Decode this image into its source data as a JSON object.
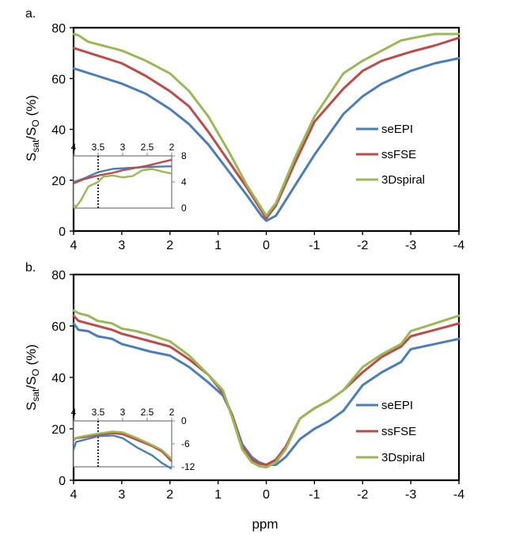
{
  "colors": {
    "seEPI": "#4a7ebb",
    "ssFSE": "#be4b48",
    "3Dspiral": "#98b954"
  },
  "figure": {
    "xlabel": "ppm"
  },
  "chart_data": [
    {
      "panel_label": "a.",
      "type": "line",
      "ylabel_main": "S",
      "ylabel_sub1": "sat",
      "ylabel_mid": "/S",
      "ylabel_sub2": "O",
      "ylabel_tail": " (%)",
      "xlim": [
        4,
        -4
      ],
      "ylim": [
        0,
        80
      ],
      "xticks": [
        4,
        3,
        2,
        1,
        0,
        -1,
        -2,
        -3,
        -4
      ],
      "yticks": [
        0,
        20,
        40,
        60,
        80
      ],
      "legend_position": "right-middle",
      "series": [
        {
          "name": "seEPI",
          "color": "#4a7ebb",
          "x": [
            4,
            3.5,
            3,
            2.5,
            2,
            1.6,
            1.2,
            0.8,
            0.4,
            0.1,
            0,
            -0.2,
            -0.6,
            -1,
            -1.6,
            -2,
            -2.4,
            -3,
            -3.5,
            -4
          ],
          "y": [
            64,
            61,
            58,
            54,
            48,
            42,
            34,
            24,
            14,
            6,
            4,
            6,
            18,
            30,
            46,
            53,
            58,
            63,
            66,
            68
          ]
        },
        {
          "name": "ssFSE",
          "color": "#be4b48",
          "x": [
            4,
            3.5,
            3,
            2.5,
            2,
            1.6,
            1.2,
            0.8,
            0.4,
            0.1,
            0,
            -0.2,
            -0.6,
            -1,
            -1.6,
            -2,
            -2.4,
            -3,
            -3.5,
            -4
          ],
          "y": [
            72,
            69,
            66,
            61,
            55,
            49,
            39,
            28,
            17,
            8,
            5,
            10,
            27,
            43,
            56,
            63,
            67,
            70.5,
            73,
            76
          ]
        },
        {
          "name": "3Dspiral",
          "color": "#98b954",
          "x": [
            4,
            3.9,
            3.7,
            3.5,
            3.2,
            3,
            2.5,
            2,
            1.6,
            1.2,
            0.8,
            0.4,
            0.1,
            0,
            -0.2,
            -0.6,
            -1,
            -1.6,
            -2,
            -2.4,
            -2.8,
            -3.2,
            -3.5,
            -4
          ],
          "y": [
            77.5,
            77,
            74.5,
            73.5,
            72,
            71,
            67,
            62,
            55,
            45,
            32,
            18,
            9,
            6,
            11,
            29,
            45,
            62,
            67,
            71,
            75,
            76.5,
            77.5,
            77.5
          ]
        }
      ],
      "inset": {
        "xlim": [
          4,
          2
        ],
        "ylim": [
          0,
          8
        ],
        "xticks": [
          4,
          3.5,
          3,
          2.5,
          2
        ],
        "yticks": [
          0,
          4,
          8
        ],
        "marker_x": 3.5,
        "series": [
          {
            "name": "seEPI",
            "x": [
              4,
              3.8,
              3.5,
              3.2,
              3,
              2.5,
              2
            ],
            "y": [
              4,
              4.5,
              5.5,
              6,
              6.1,
              6.3,
              6.4
            ]
          },
          {
            "name": "ssFSE",
            "x": [
              4,
              3.8,
              3.5,
              3.2,
              3,
              2.5,
              2
            ],
            "y": [
              3.8,
              4.4,
              5,
              5.4,
              5.8,
              6.5,
              7.4
            ]
          },
          {
            "name": "3Dspiral",
            "x": [
              4,
              3.95,
              3.85,
              3.7,
              3.5,
              3.4,
              3.2,
              3.0,
              2.8,
              2.6,
              2.4,
              2.2,
              2
            ],
            "y": [
              0.5,
              0.2,
              1.2,
              3.3,
              4,
              4.8,
              5,
              4.7,
              4.9,
              5.8,
              6,
              5.6,
              5.3
            ]
          }
        ]
      }
    },
    {
      "panel_label": "b.",
      "type": "line",
      "ylabel_main": "S",
      "ylabel_sub1": "sat",
      "ylabel_mid": "/S",
      "ylabel_sub2": "O",
      "ylabel_tail": " (%)",
      "xlim": [
        4,
        -4
      ],
      "ylim": [
        0,
        80
      ],
      "xticks": [
        4,
        3,
        2,
        1,
        0,
        -1,
        -2,
        -3,
        -4
      ],
      "yticks": [
        0,
        20,
        40,
        60,
        80
      ],
      "legend_position": "bottom-right",
      "series": [
        {
          "name": "seEPI",
          "color": "#4a7ebb",
          "x": [
            4,
            3.9,
            3.7,
            3.5,
            3.2,
            3,
            2.7,
            2.4,
            2,
            1.6,
            1.2,
            0.9,
            0.7,
            0.5,
            0.3,
            0.15,
            0,
            -0.2,
            -0.4,
            -0.7,
            -1,
            -1.3,
            -1.6,
            -2,
            -2.4,
            -2.8,
            -3,
            -3.5,
            -4
          ],
          "y": [
            61,
            58.5,
            58,
            56,
            55,
            53,
            51.5,
            50,
            48.5,
            44,
            38,
            33,
            25,
            14,
            9,
            7,
            6,
            6,
            9,
            16,
            20,
            23,
            27,
            37,
            42,
            46,
            51,
            53,
            55
          ]
        },
        {
          "name": "ssFSE",
          "color": "#be4b48",
          "x": [
            4,
            3.9,
            3.7,
            3.5,
            3.2,
            3,
            2.7,
            2.4,
            2,
            1.6,
            1.2,
            0.9,
            0.7,
            0.5,
            0.3,
            0.15,
            0,
            -0.2,
            -0.4,
            -0.7,
            -1,
            -1.3,
            -1.6,
            -2,
            -2.4,
            -2.8,
            -3,
            -3.5,
            -4
          ],
          "y": [
            64,
            62,
            61,
            60,
            58.5,
            57,
            55.5,
            54,
            52,
            47,
            41,
            34,
            25,
            13,
            8,
            6.5,
            6,
            8,
            13,
            24,
            28,
            31,
            35,
            42,
            48,
            52,
            56,
            58.5,
            61
          ]
        },
        {
          "name": "3Dspiral",
          "color": "#98b954",
          "x": [
            4,
            3.9,
            3.7,
            3.5,
            3.2,
            3,
            2.7,
            2.4,
            2,
            1.6,
            1.2,
            0.9,
            0.7,
            0.5,
            0.3,
            0.15,
            0,
            -0.2,
            -0.4,
            -0.7,
            -1,
            -1.3,
            -1.6,
            -2,
            -2.4,
            -2.8,
            -3,
            -3.5,
            -4
          ],
          "y": [
            66,
            65,
            64,
            62,
            61,
            59,
            58,
            56.5,
            54,
            48.5,
            41,
            35,
            24,
            12,
            7,
            5.5,
            5,
            7,
            12,
            24,
            28,
            31,
            35,
            44,
            49,
            53,
            58,
            61,
            64
          ]
        }
      ],
      "inset": {
        "xlim": [
          4,
          2
        ],
        "ylim": [
          -12,
          0
        ],
        "xticks": [
          4,
          3.5,
          3,
          2.5,
          2
        ],
        "yticks": [
          0,
          -6,
          -12
        ],
        "marker_x": 3.5,
        "series": [
          {
            "name": "seEPI",
            "x": [
              4,
              3.95,
              3.8,
              3.5,
              3.2,
              3,
              2.7,
              2.4,
              2.2,
              2
            ],
            "y": [
              -7.5,
              -5.5,
              -5,
              -4,
              -3.8,
              -4.5,
              -7,
              -9,
              -11,
              -12.5
            ]
          },
          {
            "name": "ssFSE",
            "x": [
              4,
              3.95,
              3.8,
              3.5,
              3.2,
              3,
              2.7,
              2.4,
              2.2,
              2
            ],
            "y": [
              -5,
              -4.5,
              -4.3,
              -3.6,
              -3.2,
              -3.5,
              -5,
              -6.6,
              -8,
              -10.6
            ]
          },
          {
            "name": "3Dspiral",
            "x": [
              4,
              3.95,
              3.8,
              3.5,
              3.2,
              3,
              2.7,
              2.4,
              2.2,
              2
            ],
            "y": [
              -4.8,
              -4.4,
              -4,
              -3.3,
              -2.8,
              -3,
              -4.5,
              -6.3,
              -7.6,
              -10
            ]
          }
        ]
      }
    }
  ]
}
